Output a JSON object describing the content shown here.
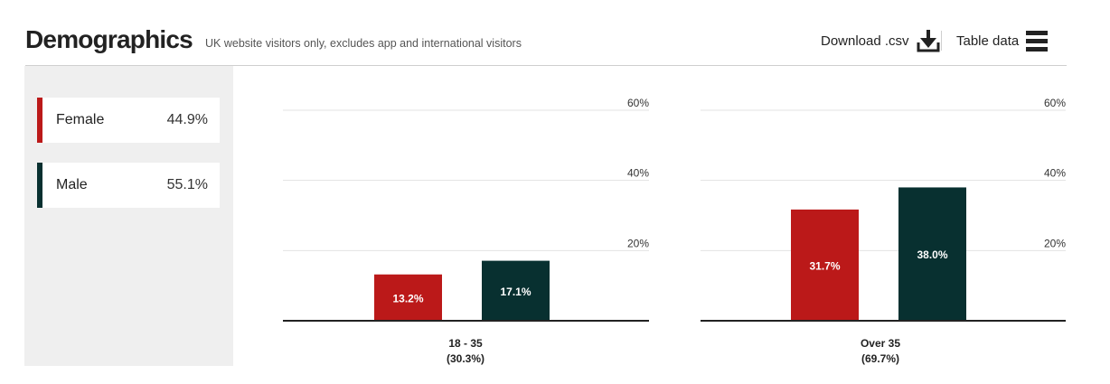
{
  "header": {
    "title": "Demographics",
    "subtitle": "UK website visitors only, excludes app and international visitors",
    "download_label": "Download .csv",
    "table_label": "Table data"
  },
  "legend": [
    {
      "label": "Female",
      "value": "44.9%",
      "color": "#bb1919"
    },
    {
      "label": "Male",
      "value": "55.1%",
      "color": "#083030"
    }
  ],
  "chart_data": {
    "type": "bar",
    "yticks": [
      "60%",
      "40%",
      "20%"
    ],
    "ylim": [
      0,
      60
    ],
    "grid": true,
    "groups": [
      {
        "category": "18 - 35",
        "share": "(30.3%)",
        "bars": [
          {
            "series": "Female",
            "value": 13.2,
            "label": "13.2%",
            "color": "#bb1919"
          },
          {
            "series": "Male",
            "value": 17.1,
            "label": "17.1%",
            "color": "#083030"
          }
        ]
      },
      {
        "category": "Over 35",
        "share": "(69.7%)",
        "bars": [
          {
            "series": "Female",
            "value": 31.7,
            "label": "31.7%",
            "color": "#bb1919"
          },
          {
            "series": "Male",
            "value": 38.0,
            "label": "38.0%",
            "color": "#083030"
          }
        ]
      }
    ]
  }
}
